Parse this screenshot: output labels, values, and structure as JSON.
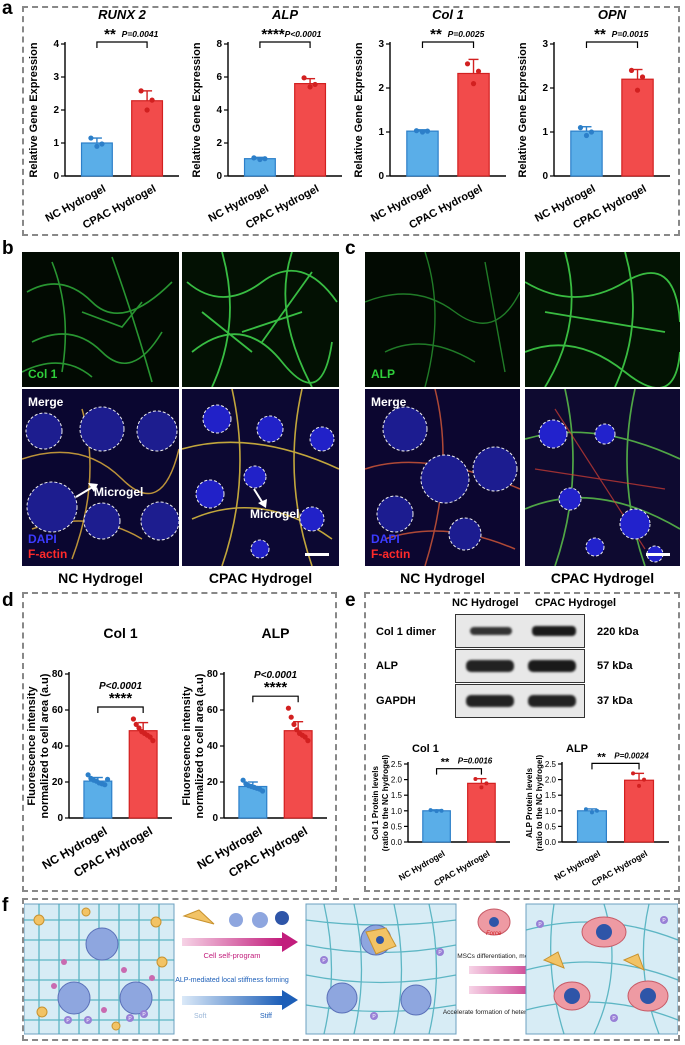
{
  "panels": {
    "a": "a",
    "b": "b",
    "c": "c",
    "d": "d",
    "e": "e",
    "f": "f"
  },
  "colors": {
    "nc": "#5aaee8",
    "cpac": "#f24b4b",
    "nc_edge": "#2c7fc9",
    "cpac_edge": "#d22020",
    "dash": "#888888"
  },
  "chart_data": [
    {
      "id": "a1",
      "type": "bar",
      "title": "RUNX 2",
      "categories": [
        "NC Hydrogel",
        "CPAC Hydrogel"
      ],
      "values": [
        1.0,
        2.28
      ],
      "errors": [
        0.15,
        0.3
      ],
      "points": [
        [
          1.15,
          0.97,
          0.9
        ],
        [
          2.58,
          2.3,
          2.0
        ]
      ],
      "ylabel": "Relative Gene Expression",
      "ylim": [
        0,
        4
      ],
      "yticks": [
        0,
        1,
        2,
        3,
        4
      ],
      "sig": "**",
      "p": "P=0.0041"
    },
    {
      "id": "a2",
      "type": "bar",
      "title": "ALP",
      "categories": [
        "NC Hydrogel",
        "CPAC Hydrogel"
      ],
      "values": [
        1.05,
        5.6
      ],
      "errors": [
        0.08,
        0.3
      ],
      "points": [
        [
          1.1,
          1.05,
          1.0
        ],
        [
          5.95,
          5.55,
          5.4
        ]
      ],
      "ylabel": "Relative Gene Expression",
      "ylim": [
        0,
        8
      ],
      "yticks": [
        0,
        2,
        4,
        6,
        8
      ],
      "sig": "****",
      "p": "P<0.0001"
    },
    {
      "id": "a3",
      "type": "bar",
      "title": "Col 1",
      "categories": [
        "NC Hydrogel",
        "CPAC Hydrogel"
      ],
      "values": [
        1.02,
        2.33
      ],
      "errors": [
        0.03,
        0.32
      ],
      "points": [
        [
          1.03,
          1.02,
          1.0
        ],
        [
          2.55,
          2.38,
          2.1
        ]
      ],
      "ylabel": "Relative Gene Expression",
      "ylim": [
        0,
        3
      ],
      "yticks": [
        0,
        1,
        2,
        3
      ],
      "sig": "**",
      "p": "P=0.0025"
    },
    {
      "id": "a4",
      "type": "bar",
      "title": "OPN",
      "categories": [
        "NC Hydrogel",
        "CPAC Hydrogel"
      ],
      "values": [
        1.02,
        2.2
      ],
      "errors": [
        0.1,
        0.22
      ],
      "points": [
        [
          1.1,
          1.0,
          0.92
        ],
        [
          2.4,
          2.25,
          1.95
        ]
      ],
      "ylabel": "Relative Gene Expression",
      "ylim": [
        0,
        3
      ],
      "yticks": [
        0,
        1,
        2,
        3
      ],
      "sig": "**",
      "p": "P=0.0015"
    },
    {
      "id": "d1",
      "type": "bar",
      "title": "Col 1",
      "categories": [
        "NC Hydrogel",
        "CPAC Hydrogel"
      ],
      "values": [
        20.5,
        48.5
      ],
      "errors": [
        2.0,
        4.5
      ],
      "points": [
        [
          24,
          22,
          21,
          20.5,
          19.5,
          19,
          18.5,
          21.5
        ],
        [
          55,
          52,
          50,
          48,
          47,
          46,
          45,
          43
        ]
      ],
      "ylabel": "Fluorescence intensity normalized to cell area (a.u)",
      "ylim": [
        0,
        80
      ],
      "yticks": [
        0,
        20,
        40,
        60,
        80
      ],
      "sig": "****",
      "p": "P<0.0001"
    },
    {
      "id": "d2",
      "type": "bar",
      "title": "ALP",
      "categories": [
        "NC Hydrogel",
        "CPAC Hydrogel"
      ],
      "values": [
        17.5,
        48.5
      ],
      "errors": [
        2.5,
        5.0
      ],
      "points": [
        [
          21,
          19,
          18,
          17.5,
          17,
          16.5,
          16,
          15
        ],
        [
          61,
          56,
          52,
          49,
          47,
          46,
          45,
          43
        ]
      ],
      "ylabel": "Fluorescence intensity normalized to cell area (a.u)",
      "ylim": [
        0,
        80
      ],
      "yticks": [
        0,
        20,
        40,
        60,
        80
      ],
      "sig": "****",
      "p": "P<0.0001"
    },
    {
      "id": "e1",
      "type": "bar",
      "title": "Col 1",
      "categories": [
        "NC Hydrogel",
        "CPAC Hydrogel"
      ],
      "values": [
        1.0,
        1.88
      ],
      "errors": [
        0.03,
        0.15
      ],
      "points": [
        [
          1.02,
          1.0,
          0.99
        ],
        [
          2.02,
          1.88,
          1.75
        ]
      ],
      "ylabel": "Col 1 Protein levels (ratio to the NC hydrogel)",
      "ylim": [
        0,
        2.5
      ],
      "yticks": [
        0.0,
        0.5,
        1.0,
        1.5,
        2.0,
        2.5
      ],
      "sig": "**",
      "p": "P=0.0016"
    },
    {
      "id": "e2",
      "type": "bar",
      "title": "ALP",
      "categories": [
        "NC Hydrogel",
        "CPAC Hydrogel"
      ],
      "values": [
        1.0,
        1.98
      ],
      "errors": [
        0.06,
        0.22
      ],
      "points": [
        [
          1.05,
          1.0,
          0.95
        ],
        [
          2.2,
          2.0,
          1.8
        ]
      ],
      "ylabel": "ALP Protein levels (ratio to the NC hydrogel)",
      "ylim": [
        0,
        2.5
      ],
      "yticks": [
        0.0,
        0.5,
        1.0,
        1.5,
        2.0,
        2.5
      ],
      "sig": "**",
      "p": "P=0.0024"
    }
  ],
  "micrographs": {
    "b": {
      "top_label": "Col 1",
      "merge": "Merge",
      "dapi": "DAPI",
      "factin": "F-actin",
      "arrow_nc": "Microgel",
      "arrow_cpac": "Microgel",
      "cap_nc": "NC Hydrogel",
      "cap_cpac": "CPAC Hydrogel"
    },
    "c": {
      "top_label": "ALP",
      "merge": "Merge",
      "dapi": "DAPI",
      "factin": "F-actin",
      "cap_nc": "NC Hydrogel",
      "cap_cpac": "CPAC Hydrogel"
    }
  },
  "western": {
    "col_nc": "NC Hydrogel",
    "col_cpac": "CPAC Hydrogel",
    "rows": [
      {
        "name": "Col 1 dimer",
        "kda": "220 kDa"
      },
      {
        "name": "ALP",
        "kda": "57 kDa"
      },
      {
        "name": "GAPDH",
        "kda": "37 kDa"
      }
    ]
  },
  "schematic": {
    "step1": "Cell self-program",
    "step2": "ALP-mediated local stiffness forming",
    "soft": "Soft",
    "stiff": "Stiff",
    "force": "Force",
    "step3": "MSCs differentiation, more ALP release",
    "step4": "Accelerate formation of heterogeneous structures",
    "p": "P"
  }
}
